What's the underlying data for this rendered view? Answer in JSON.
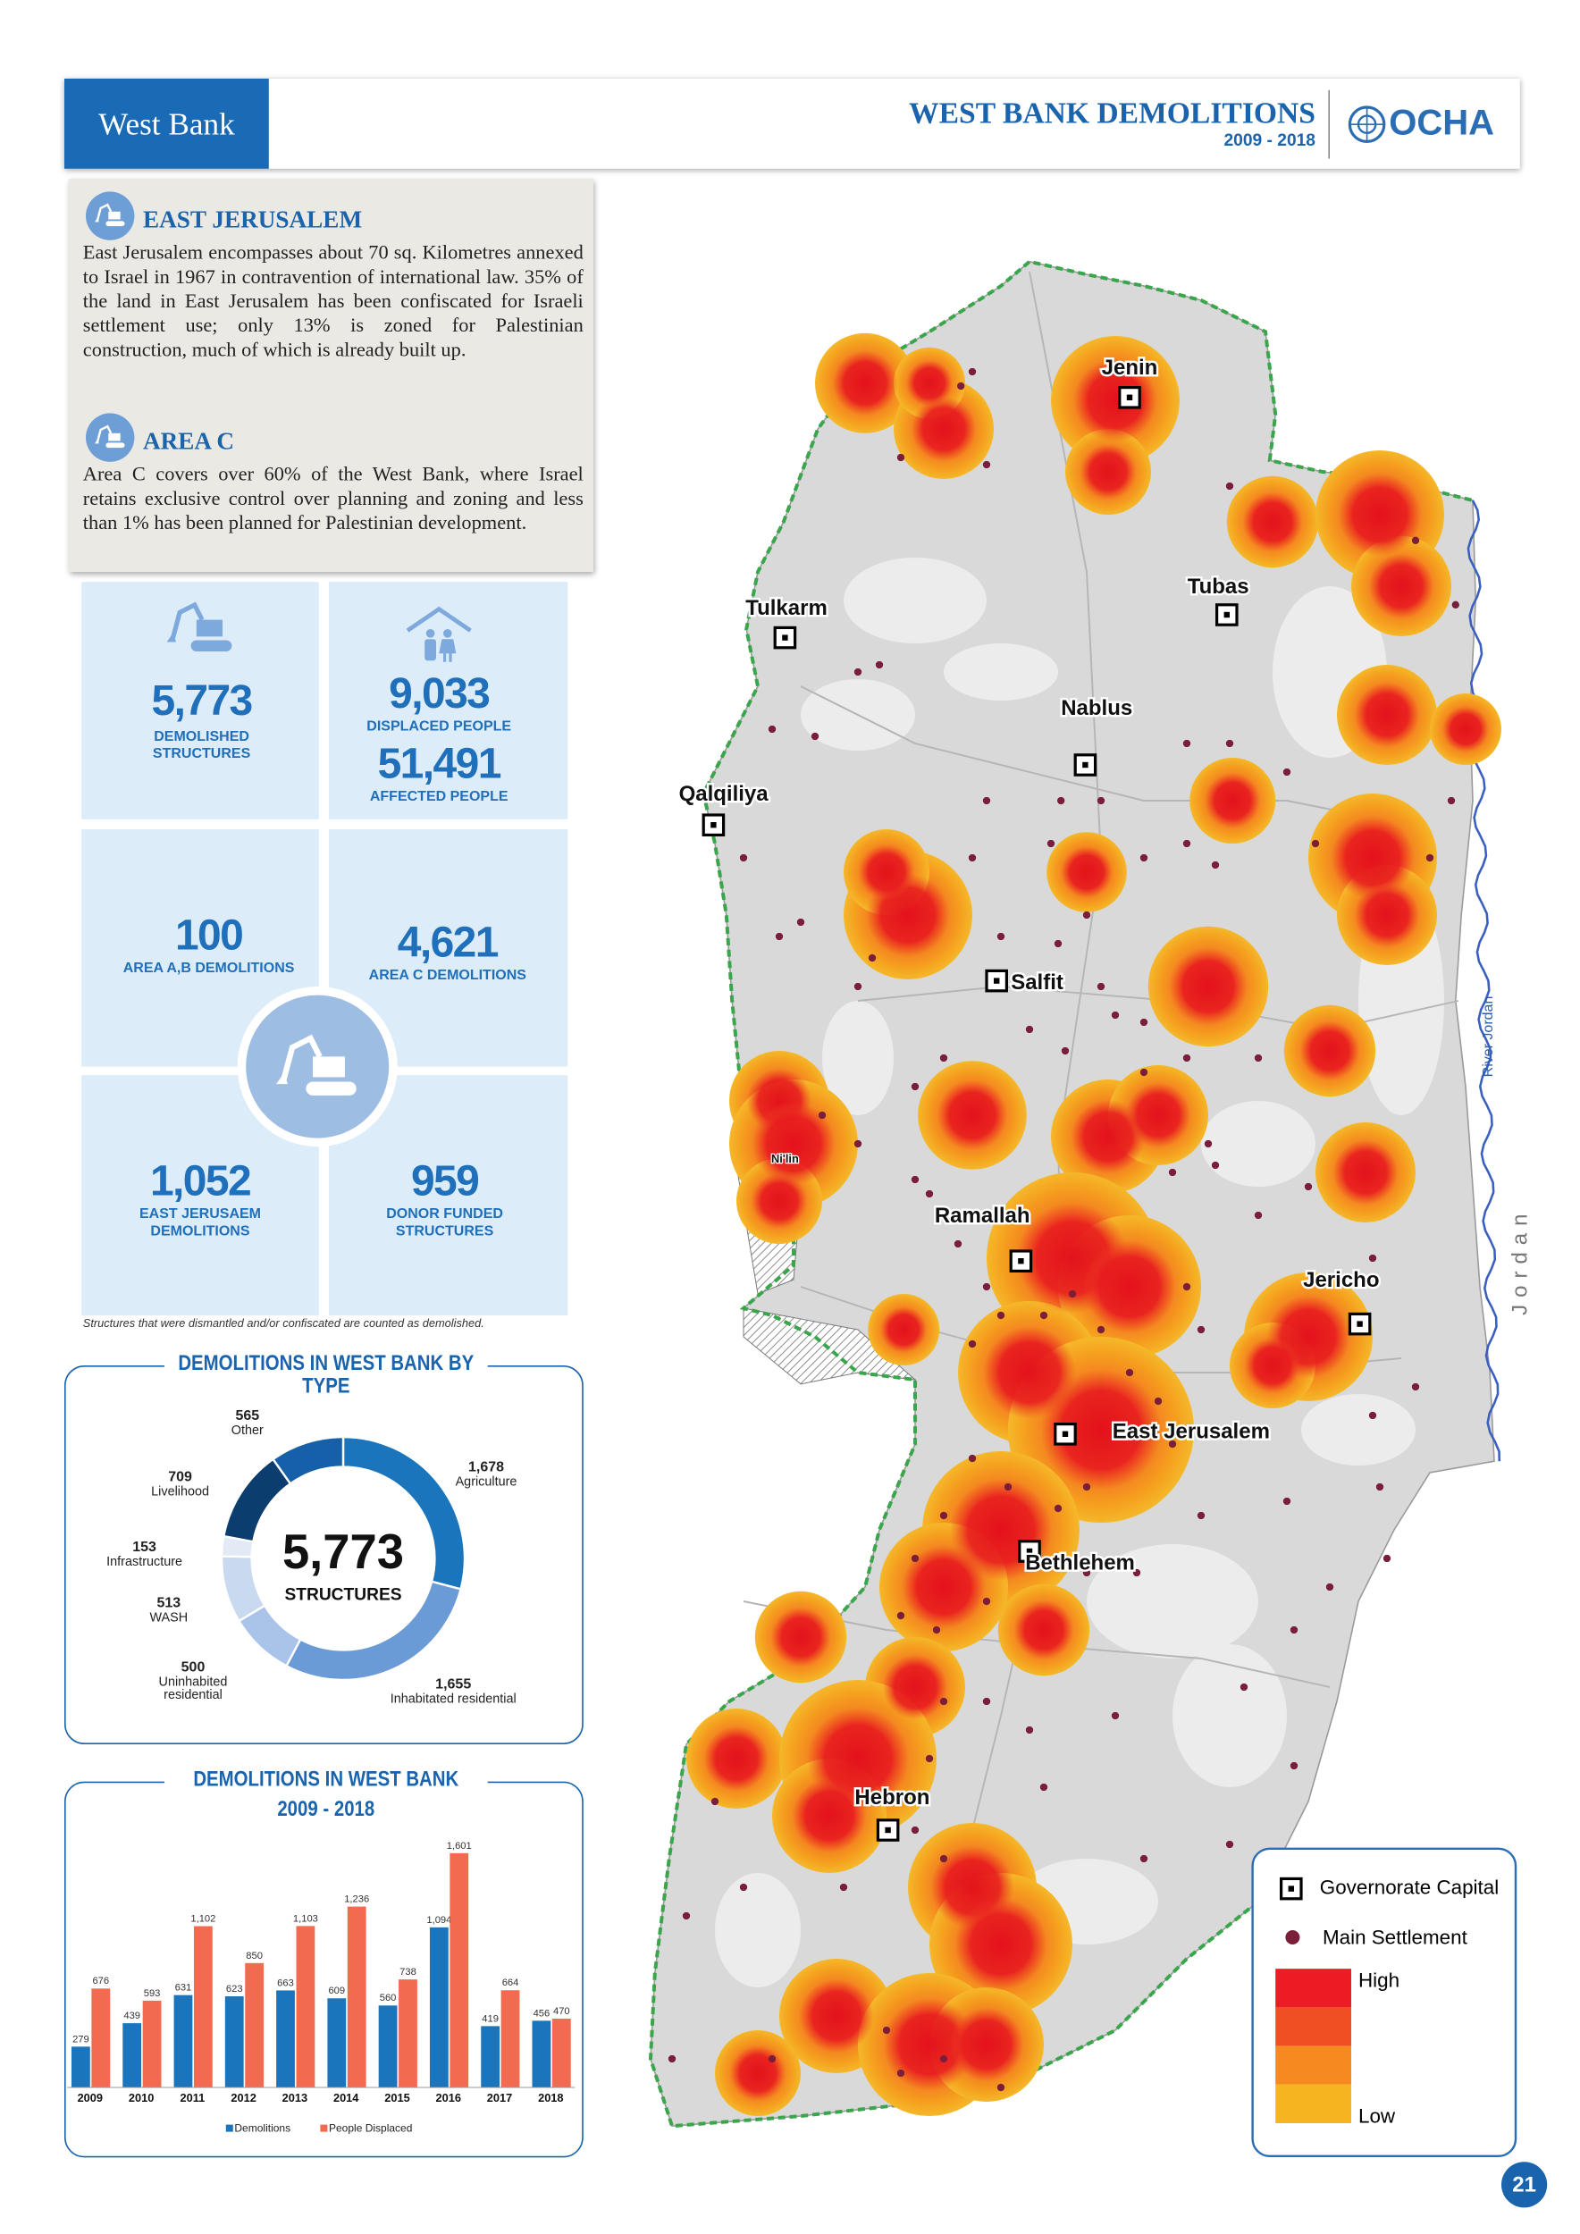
{
  "header": {
    "section": "West Bank",
    "title": "WEST BANK DEMOLITIONS",
    "period": "2009 - 2018",
    "logo": "OCHA"
  },
  "info": [
    {
      "heading": "EAST JERUSALEM",
      "text": "East Jerusalem encompasses about 70 sq. Kilometres annexed to Israel in 1967 in contravention of international law. 35% of the land in East Jerusalem has been confiscated for Israeli settlement use; only 13%  is zoned for Palestinian construction, much of which is already built up."
    },
    {
      "heading": "AREA C",
      "text": "Area C covers over 60% of the West Bank, where Israel retains exclusive control over planning and zoning and less than 1% has been planned for Palestinian development."
    }
  ],
  "stats": [
    {
      "value": "5,773",
      "label": "DEMOLISHED STRUCTURES"
    },
    {
      "value": "9,033",
      "label": "DISPLACED PEOPLE"
    },
    {
      "value": "51,491",
      "label": "AFFECTED PEOPLE"
    },
    {
      "value": "100",
      "label": "AREA A,B DEMOLITIONS"
    },
    {
      "value": "4,621",
      "label": "AREA C DEMOLITIONS"
    },
    {
      "value": "1,052",
      "label": "EAST JERUSAEM DEMOLITIONS"
    },
    {
      "value": "959",
      "label": "DONOR FUNDED STRUCTURES"
    }
  ],
  "footnote": "Structures that were dismantled and/or confiscated are counted as demolished.",
  "chart_data": [
    {
      "type": "pie",
      "donut": true,
      "title": "DEMOLITIONS IN WEST BANK BY TYPE",
      "center_value": "5,773",
      "center_label": "STRUCTURES",
      "categories": [
        "Agriculture",
        "Inhabitated residential",
        "Uninhabited residential",
        "WASH",
        "Infrastructure",
        "Livelihood",
        "Other"
      ],
      "values": [
        1678,
        1655,
        500,
        513,
        153,
        709,
        565
      ],
      "value_labels": [
        "1,678",
        "1,655",
        "500",
        "513",
        "153",
        "709",
        "565"
      ],
      "colors": [
        "#1a75bc",
        "#6a9bd6",
        "#a9c4e8",
        "#c9d9ef",
        "#e2eaf5",
        "#0b3d6e",
        "#1560a8"
      ]
    },
    {
      "type": "bar",
      "title": "DEMOLITIONS IN WEST BANK",
      "subtitle": "2009 - 2018",
      "categories": [
        "2009",
        "2010",
        "2011",
        "2012",
        "2013",
        "2014",
        "2015",
        "2016",
        "2017",
        "2018"
      ],
      "series": [
        {
          "name": "Demolitions",
          "color": "#1b75bc",
          "values": [
            279,
            439,
            631,
            623,
            663,
            609,
            560,
            1094,
            419,
            456
          ],
          "value_labels": [
            "279",
            "439",
            "631",
            "623",
            "663",
            "609",
            "560",
            "1,094",
            "419",
            "456"
          ]
        },
        {
          "name": "People Displaced",
          "color": "#f26a50",
          "values": [
            676,
            593,
            1102,
            850,
            1103,
            1236,
            738,
            1601,
            664,
            470
          ],
          "value_labels": [
            "676",
            "593",
            "1,102",
            "850",
            "1,103",
            "1,236",
            "738",
            "1,601",
            "664",
            "470"
          ]
        }
      ],
      "ylim": [
        0,
        1700
      ],
      "legend": "bottom"
    }
  ],
  "map": {
    "places": [
      {
        "name": "Jenin",
        "capital": true
      },
      {
        "name": "Tubas",
        "capital": true
      },
      {
        "name": "Tulkarm",
        "capital": true
      },
      {
        "name": "Nablus",
        "capital": true
      },
      {
        "name": "Qalqiliya",
        "capital": true
      },
      {
        "name": "Salfit",
        "capital": true
      },
      {
        "name": "Ni'lin",
        "capital": false
      },
      {
        "name": "Ramallah",
        "capital": true
      },
      {
        "name": "Jericho",
        "capital": true
      },
      {
        "name": "East Jerusalem",
        "capital": true
      },
      {
        "name": "Bethlehem",
        "capital": true
      },
      {
        "name": "Hebron",
        "capital": true
      }
    ],
    "river": "River Jordan",
    "country": "Jordan",
    "legend": {
      "capital": "Governorate Capital",
      "settlement": "Main Settlement",
      "high": "High",
      "low": "Low"
    }
  },
  "page_number": "21"
}
